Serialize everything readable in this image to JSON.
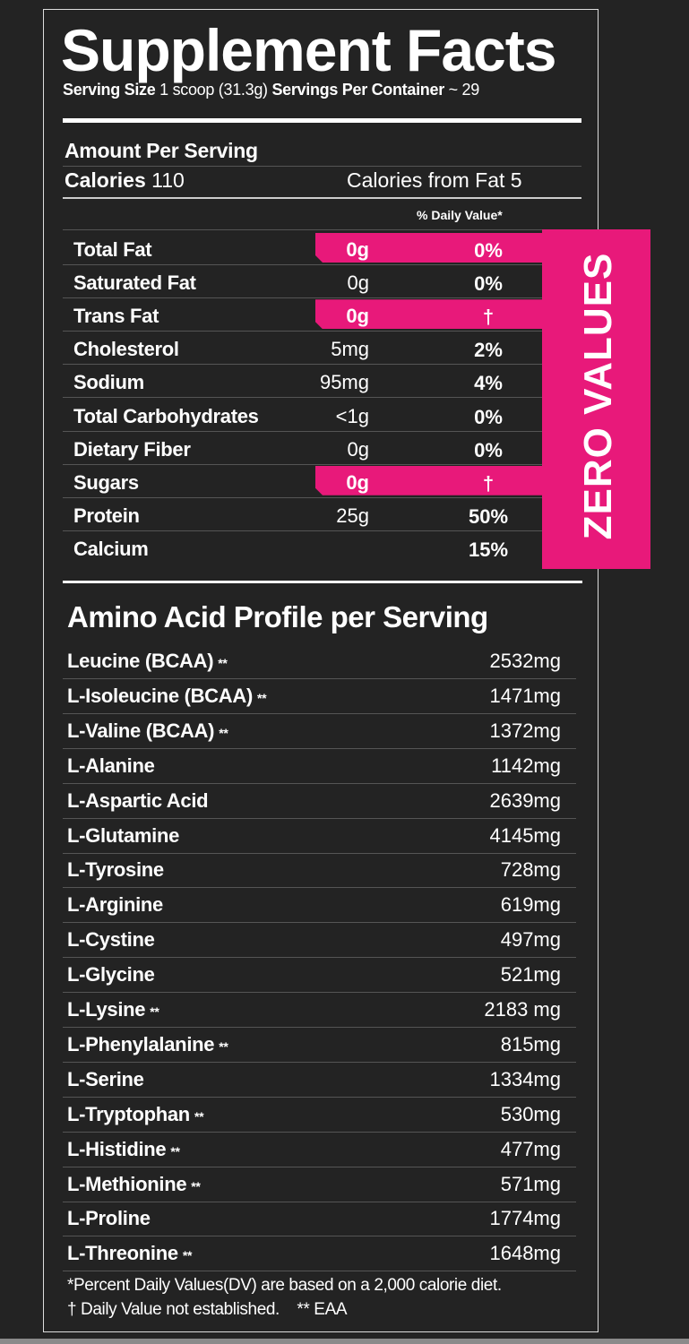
{
  "title": "Supplement Facts",
  "serving": {
    "size_label": "Serving Size",
    "size_value": "1 scoop (31.3g)",
    "per_container_label": "Servings Per Container",
    "per_container_value": "~ 29"
  },
  "amount_per_serving": "Amount Per Serving",
  "calories": {
    "label": "Calories",
    "value": "110",
    "from_fat": "Calories from Fat 5"
  },
  "dv_header": "% Daily Value*",
  "zero_values_label": "ZERO VALUES",
  "colors": {
    "accent": "#e8197a",
    "background": "#232323"
  },
  "nutrients": [
    {
      "name": "Total Fat",
      "amount": "0g",
      "dv": "0%",
      "highlight": true
    },
    {
      "name": "Saturated Fat",
      "amount": "0g",
      "dv": "0%",
      "highlight": false
    },
    {
      "name": "Trans Fat",
      "amount": "0g",
      "dv": "†",
      "highlight": true
    },
    {
      "name": "Cholesterol",
      "amount": "5mg",
      "dv": "2%",
      "highlight": false
    },
    {
      "name": "Sodium",
      "amount": "95mg",
      "dv": "4%",
      "highlight": false
    },
    {
      "name": "Total Carbohydrates",
      "amount": "<1g",
      "dv": "0%",
      "highlight": false
    },
    {
      "name": "Dietary Fiber",
      "amount": "0g",
      "dv": "0%",
      "highlight": false
    },
    {
      "name": "Sugars",
      "amount": "0g",
      "dv": "†",
      "highlight": true
    },
    {
      "name": "Protein",
      "amount": "25g",
      "dv": "50%",
      "highlight": false
    },
    {
      "name": "Calcium",
      "amount": "",
      "dv": "15%",
      "highlight": false
    }
  ],
  "amino_title": "Amino Acid Profile per Serving",
  "amino_acids": [
    {
      "name": "Leucine (BCAA)",
      "mark": "**",
      "value": "2532mg"
    },
    {
      "name": "L-Isoleucine (BCAA)",
      "mark": "**",
      "value": "1471mg"
    },
    {
      "name": "L-Valine (BCAA)",
      "mark": "**",
      "value": "1372mg"
    },
    {
      "name": "L-Alanine",
      "mark": "",
      "value": "1142mg"
    },
    {
      "name": "L-Aspartic Acid",
      "mark": "",
      "value": "2639mg"
    },
    {
      "name": "L-Glutamine",
      "mark": "",
      "value": "4145mg"
    },
    {
      "name": "L-Tyrosine",
      "mark": "",
      "value": "728mg"
    },
    {
      "name": "L-Arginine",
      "mark": "",
      "value": "619mg"
    },
    {
      "name": "L-Cystine",
      "mark": "",
      "value": "497mg"
    },
    {
      "name": "L-Glycine",
      "mark": "",
      "value": "521mg"
    },
    {
      "name": "L-Lysine",
      "mark": "**",
      "value": "2183 mg"
    },
    {
      "name": "L-Phenylalanine",
      "mark": "**",
      "value": "815mg"
    },
    {
      "name": "L-Serine",
      "mark": "",
      "value": "1334mg"
    },
    {
      "name": "L-Tryptophan",
      "mark": "**",
      "value": "530mg"
    },
    {
      "name": "L-Histidine",
      "mark": "**",
      "value": "477mg"
    },
    {
      "name": "L-Methionine",
      "mark": "**",
      "value": "571mg"
    },
    {
      "name": "L-Proline",
      "mark": "",
      "value": "1774mg"
    },
    {
      "name": "L-Threonine",
      "mark": "**",
      "value": "1648mg"
    }
  ],
  "footnotes": [
    "*Percent Daily Values(DV) are based on a 2,000 calorie diet.",
    "† Daily Value not established.    ** EAA"
  ]
}
